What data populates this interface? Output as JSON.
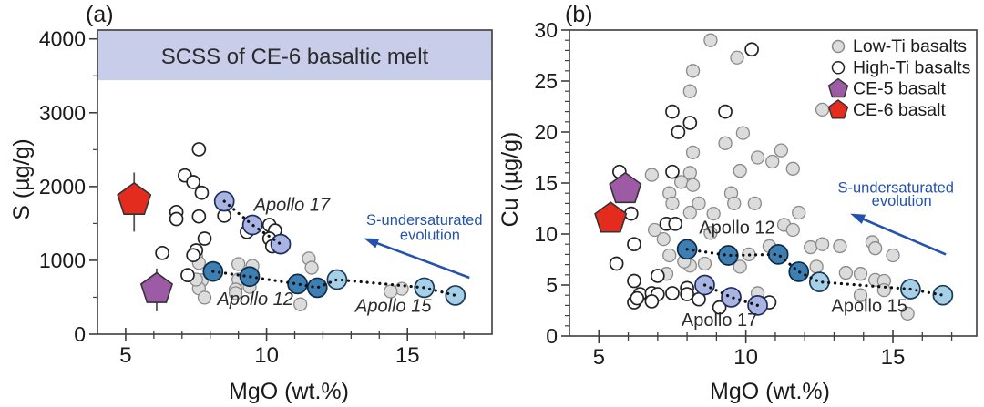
{
  "figure": {
    "background": "#ffffff"
  },
  "colors": {
    "frame": "#3d3d3d",
    "tick": "#3d3d3d",
    "text": "#1a1a1a",
    "band_fill": "#c8cde9",
    "band_text": "#2b2b2b",
    "low_ti_fill": "#dcdcdc",
    "low_ti_stroke": "#8a8a8a",
    "high_ti_fill": "#ffffff",
    "high_ti_stroke": "#222222",
    "apollo12": "#3d7fb2",
    "apollo15": "#a6d0e8",
    "apollo17": "#a9b4e2",
    "ce5": "#9d5ba6",
    "ce6": "#e32b1e",
    "dotted_line": "#111111",
    "arrow_blue": "#2351ae"
  },
  "chart_data": [
    {
      "id": "a",
      "type": "scatter",
      "panel_label": "(a)",
      "xlabel": "MgO (wt.%)",
      "ylabel": "S (µg/g)",
      "xlim": [
        4,
        18
      ],
      "ylim": [
        0,
        4120
      ],
      "x_major_ticks": [
        5,
        10,
        15
      ],
      "x_minor_step": 1,
      "y_major_ticks": [
        0,
        1000,
        2000,
        3000,
        4000
      ],
      "y_minor_step": 500,
      "grid": false,
      "band": {
        "label": "SCSS of CE-6 basaltic melt",
        "y_from": 3440,
        "y_to": 4120,
        "fill": "#c8cde9"
      },
      "series": [
        {
          "name": "Low-Ti basalts",
          "marker": "circle",
          "r": 7,
          "fill": "#dcdcdc",
          "stroke": "#8a8a8a",
          "stroke_width": 1.3,
          "points": [
            [
              7.5,
              1050
            ],
            [
              7.6,
              965
            ],
            [
              7.7,
              730
            ],
            [
              7.6,
              620
            ],
            [
              7.8,
              495
            ],
            [
              7.5,
              740
            ],
            [
              9.0,
              950
            ],
            [
              9.5,
              925
            ],
            [
              9.0,
              740
            ],
            [
              9.4,
              640
            ],
            [
              8.9,
              605
            ],
            [
              8.9,
              555
            ],
            [
              11.5,
              1025
            ],
            [
              11.6,
              900
            ],
            [
              11.2,
              405
            ],
            [
              14.8,
              615
            ],
            [
              14.4,
              580
            ]
          ]
        },
        {
          "name": "High-Ti basalts",
          "marker": "circle",
          "r": 7,
          "fill": "#ffffff",
          "stroke": "#222222",
          "stroke_width": 1.7,
          "points": [
            [
              7.6,
              2505
            ],
            [
              7.1,
              2150
            ],
            [
              7.4,
              2060
            ],
            [
              7.7,
              1915
            ],
            [
              6.8,
              1655
            ],
            [
              6.8,
              1560
            ],
            [
              7.6,
              1595
            ],
            [
              7.8,
              1295
            ],
            [
              6.3,
              1100
            ],
            [
              7.5,
              1135
            ],
            [
              8.5,
              1605
            ],
            [
              9.3,
              1385
            ],
            [
              10.1,
              1480
            ],
            [
              10.3,
              1405
            ],
            [
              10.1,
              1295
            ],
            [
              10.2,
              1190
            ],
            [
              7.2,
              800
            ],
            [
              7.4,
              1070
            ]
          ]
        },
        {
          "name": "CE-5 basalt",
          "marker": "pentagon",
          "r": 18,
          "fill": "#9d5ba6",
          "stroke": "#333333",
          "stroke_width": 1.6,
          "points": [
            [
              6.1,
              610
            ]
          ],
          "error_y": [
            [
              310,
              890
            ]
          ]
        },
        {
          "name": "CE-6 basalt",
          "marker": "pentagon",
          "r": 19,
          "fill": "#e32b1e",
          "stroke": "#333333",
          "stroke_width": 1.6,
          "points": [
            [
              5.3,
              1815
            ]
          ],
          "error_y": [
            [
              1390,
              2190
            ]
          ]
        },
        {
          "name": "Apollo 17 basalts",
          "marker": "circle",
          "r": 10.5,
          "fill": "#a9b4e2",
          "stroke": "#1e2d5e",
          "stroke_width": 1.7,
          "points": [
            [
              8.5,
              1800
            ],
            [
              9.5,
              1480
            ],
            [
              10.5,
              1220
            ]
          ]
        },
        {
          "name": "Apollo 12 basalts",
          "marker": "circle",
          "r": 10.5,
          "fill": "#3d7fb2",
          "stroke": "#0e2a45",
          "stroke_width": 1.7,
          "points": [
            [
              8.1,
              850
            ],
            [
              9.4,
              780
            ],
            [
              11.1,
              680
            ],
            [
              11.8,
              630
            ]
          ]
        },
        {
          "name": "Apollo 15 basalts",
          "marker": "circle",
          "r": 10.5,
          "fill": "#a6d0e8",
          "stroke": "#1b3a55",
          "stroke_width": 1.7,
          "points": [
            [
              12.5,
              740
            ],
            [
              15.6,
              630
            ],
            [
              16.7,
              525
            ]
          ]
        }
      ],
      "trend_lines": [
        {
          "name": "Apollo 17 trend",
          "points": [
            [
              8.5,
              1800
            ],
            [
              9.5,
              1480
            ],
            [
              10.5,
              1220
            ]
          ]
        },
        {
          "name": "Apollo 12-15 trend",
          "points": [
            [
              8.1,
              850
            ],
            [
              9.4,
              780
            ],
            [
              11.1,
              680
            ],
            [
              11.8,
              630
            ],
            [
              12.5,
              740
            ],
            [
              15.6,
              630
            ],
            [
              16.7,
              525
            ]
          ]
        }
      ],
      "annotations": [
        {
          "text": "Apollo 17",
          "x": 10.9,
          "y": 1745,
          "size": 20,
          "color": "#2b2b2b",
          "italic": true
        },
        {
          "text": "Apollo 12",
          "x": 9.6,
          "y": 470,
          "size": 20,
          "color": "#2b2b2b",
          "italic": true
        },
        {
          "text": "Apollo 15",
          "x": 14.5,
          "y": 375,
          "size": 20,
          "color": "#2b2b2b",
          "italic": true
        },
        {
          "text": "S-undersaturated",
          "x": 15.6,
          "y": 1545,
          "size": 16.5,
          "color": "#2351ae",
          "italic": false
        },
        {
          "text": "evolution",
          "x": 15.8,
          "y": 1340,
          "size": 16.5,
          "color": "#2351ae",
          "italic": false
        }
      ],
      "arrow": {
        "from": [
          17.2,
          765
        ],
        "to": [
          13.45,
          1300
        ],
        "color": "#2351ae"
      }
    },
    {
      "id": "b",
      "type": "scatter",
      "panel_label": "(b)",
      "xlabel": "MgO (wt.%)",
      "ylabel": "Cu (µg/g)",
      "xlim": [
        4,
        17.85
      ],
      "ylim": [
        0,
        30
      ],
      "x_major_ticks": [
        5,
        10,
        15
      ],
      "x_minor_step": 1,
      "y_major_ticks": [
        0,
        5,
        10,
        15,
        20,
        25,
        30
      ],
      "y_minor_step": 1,
      "grid": false,
      "series": [
        {
          "name": "Low-Ti basalts",
          "marker": "circle",
          "r": 7,
          "fill": "#dcdcdc",
          "stroke": "#8a8a8a",
          "stroke_width": 1.3,
          "points": [
            [
              8.8,
              29.0
            ],
            [
              9.7,
              27.3
            ],
            [
              8.2,
              26.0
            ],
            [
              8.1,
              24.0
            ],
            [
              12.6,
              22.2
            ],
            [
              9.3,
              18.9
            ],
            [
              9.9,
              19.9
            ],
            [
              8.2,
              18.0
            ],
            [
              10.4,
              17.5
            ],
            [
              11.2,
              18.2
            ],
            [
              10.9,
              17.1
            ],
            [
              11.6,
              16.4
            ],
            [
              6.8,
              15.8
            ],
            [
              8.1,
              16.0
            ],
            [
              9.8,
              16.2
            ],
            [
              7.8,
              15.1
            ],
            [
              8.2,
              14.8
            ],
            [
              7.4,
              14.0
            ],
            [
              7.5,
              13.0
            ],
            [
              8.4,
              13.0
            ],
            [
              9.5,
              14.0
            ],
            [
              9.6,
              13.0
            ],
            [
              10.3,
              13.0
            ],
            [
              11.8,
              12.1
            ],
            [
              8.1,
              12.1
            ],
            [
              8.9,
              12.0
            ],
            [
              11.3,
              10.9
            ],
            [
              11.6,
              10.4
            ],
            [
              6.9,
              10.4
            ],
            [
              8.8,
              10.1
            ],
            [
              7.2,
              9.5
            ],
            [
              7.4,
              7.9
            ],
            [
              7.3,
              6.1
            ],
            [
              8.1,
              6.9
            ],
            [
              8.6,
              7.1
            ],
            [
              9.8,
              6.8
            ],
            [
              10.1,
              8.0
            ],
            [
              7.9,
              7.3
            ],
            [
              10.8,
              8.8
            ],
            [
              12.2,
              8.7
            ],
            [
              12.6,
              9.0
            ],
            [
              13.2,
              8.8
            ],
            [
              14.3,
              9.2
            ],
            [
              14.4,
              8.6
            ],
            [
              15.0,
              7.9
            ],
            [
              12.4,
              6.8
            ],
            [
              13.4,
              6.2
            ],
            [
              13.9,
              6.1
            ],
            [
              14.4,
              5.5
            ],
            [
              14.7,
              5.4
            ],
            [
              14.7,
              4.5
            ],
            [
              13.9,
              4.0
            ],
            [
              10.4,
              4.2
            ],
            [
              15.5,
              2.2
            ]
          ]
        },
        {
          "name": "High-Ti basalts",
          "marker": "circle",
          "r": 7,
          "fill": "#ffffff",
          "stroke": "#222222",
          "stroke_width": 1.7,
          "points": [
            [
              10.2,
              28.1
            ],
            [
              7.5,
              22.0
            ],
            [
              9.3,
              22.0
            ],
            [
              8.1,
              20.9
            ],
            [
              7.7,
              20.0
            ],
            [
              5.7,
              16.1
            ],
            [
              7.5,
              16.1
            ],
            [
              6.1,
              12.0
            ],
            [
              7.3,
              11.0
            ],
            [
              7.6,
              11.0
            ],
            [
              6.2,
              9.0
            ],
            [
              5.6,
              7.1
            ],
            [
              6.2,
              5.4
            ],
            [
              7.0,
              5.9
            ],
            [
              6.4,
              4.1
            ],
            [
              6.8,
              4.2
            ],
            [
              7.0,
              4.1
            ],
            [
              6.2,
              3.3
            ],
            [
              6.3,
              3.7
            ],
            [
              6.8,
              3.4
            ],
            [
              7.5,
              4.2
            ],
            [
              8.0,
              4.7
            ],
            [
              8.0,
              4.1
            ],
            [
              8.4,
              3.6
            ],
            [
              9.1,
              2.8
            ],
            [
              10.8,
              3.3
            ]
          ]
        },
        {
          "name": "CE-5 basalt",
          "marker": "pentagon",
          "r": 18,
          "fill": "#9d5ba6",
          "stroke": "#333333",
          "stroke_width": 1.6,
          "points": [
            [
              5.9,
              14.4
            ]
          ]
        },
        {
          "name": "CE-6 basalt",
          "marker": "pentagon",
          "r": 18,
          "fill": "#e32b1e",
          "stroke": "#333333",
          "stroke_width": 1.6,
          "points": [
            [
              5.4,
              11.5
            ]
          ]
        },
        {
          "name": "Apollo 17 basalts",
          "marker": "circle",
          "r": 10.5,
          "fill": "#a9b4e2",
          "stroke": "#1e2d5e",
          "stroke_width": 1.7,
          "points": [
            [
              8.6,
              5.0
            ],
            [
              9.5,
              3.8
            ],
            [
              10.4,
              3.0
            ]
          ]
        },
        {
          "name": "Apollo 12 basalts",
          "marker": "circle",
          "r": 10.5,
          "fill": "#3d7fb2",
          "stroke": "#0e2a45",
          "stroke_width": 1.7,
          "points": [
            [
              8.0,
              8.5
            ],
            [
              9.4,
              7.9
            ],
            [
              11.1,
              8.0
            ],
            [
              11.8,
              6.3
            ]
          ]
        },
        {
          "name": "Apollo 15 basalts",
          "marker": "circle",
          "r": 10.5,
          "fill": "#a6d0e8",
          "stroke": "#1b3a55",
          "stroke_width": 1.7,
          "points": [
            [
              12.5,
              5.3
            ],
            [
              15.6,
              4.6
            ],
            [
              16.7,
              4.0
            ]
          ]
        }
      ],
      "trend_lines": [
        {
          "name": "Apollo 17 trend",
          "points": [
            [
              8.6,
              5.0
            ],
            [
              9.5,
              3.8
            ],
            [
              10.4,
              3.0
            ]
          ]
        },
        {
          "name": "Apollo 12-15 trend",
          "points": [
            [
              8.0,
              8.5
            ],
            [
              9.4,
              7.9
            ],
            [
              11.1,
              8.0
            ],
            [
              11.8,
              6.3
            ],
            [
              12.5,
              5.3
            ],
            [
              15.6,
              4.6
            ],
            [
              16.7,
              4.0
            ]
          ]
        }
      ],
      "annotations": [
        {
          "text": "Apollo 12",
          "x": 9.7,
          "y": 10.6,
          "size": 20,
          "color": "#2b2b2b",
          "italic": false
        },
        {
          "text": "Apollo 17",
          "x": 9.1,
          "y": 1.5,
          "size": 20,
          "color": "#2b2b2b",
          "italic": false
        },
        {
          "text": "Apollo 15",
          "x": 14.2,
          "y": 2.9,
          "size": 20,
          "color": "#2b2b2b",
          "italic": false
        },
        {
          "text": "S-undersaturated",
          "x": 15.1,
          "y": 14.5,
          "size": 16.5,
          "color": "#2351ae",
          "italic": false
        },
        {
          "text": "evolution",
          "x": 15.3,
          "y": 13.2,
          "size": 16.5,
          "color": "#2351ae",
          "italic": false
        }
      ],
      "arrow": {
        "from": [
          16.8,
          8.0
        ],
        "to": [
          13.55,
          12.0
        ],
        "color": "#2351ae"
      },
      "legend": {
        "x_icon": 920,
        "x_text": 936,
        "y_start": 51,
        "row_h": 23.3,
        "font_size": 19.5,
        "items": [
          {
            "label": "Low-Ti basalts",
            "marker": "circle",
            "r": 6.5,
            "fill": "#dcdcdc",
            "stroke": "#8a8a8a"
          },
          {
            "label": "High-Ti basalts",
            "marker": "circle",
            "r": 6.5,
            "fill": "#ffffff",
            "stroke": "#222222"
          },
          {
            "label": "CE-5 basalt",
            "marker": "pentagon",
            "r": 11,
            "fill": "#9d5ba6",
            "stroke": "#333333"
          },
          {
            "label": "CE-6 basalt",
            "marker": "pentagon",
            "r": 11,
            "fill": "#e32b1e",
            "stroke": "#333333"
          }
        ]
      }
    }
  ]
}
